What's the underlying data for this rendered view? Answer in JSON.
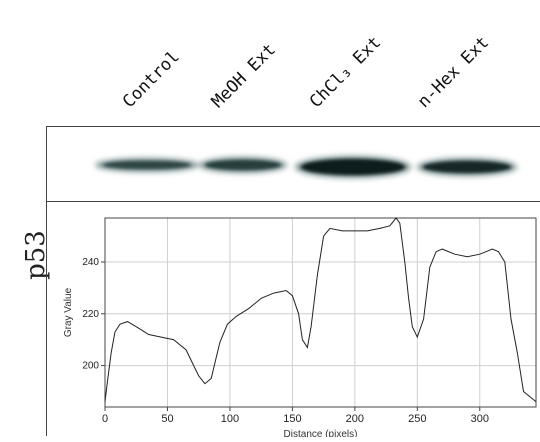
{
  "lanes": [
    "Control",
    "MeOH Ext",
    "ChCl₃ Ext",
    "n-Hex Ext"
  ],
  "protein": "p53",
  "chart_data": {
    "type": "line",
    "xlabel": "Distance (pixels)",
    "ylabel": "Gray Value",
    "xlim": [
      0,
      345
    ],
    "ylim": [
      184,
      257
    ],
    "xticks": [
      0,
      50,
      100,
      150,
      200,
      250,
      300
    ],
    "yticks": [
      200,
      220,
      240
    ],
    "xtick_labels": [
      "0",
      "50",
      "100",
      "150",
      "200",
      "250",
      "300"
    ],
    "ytick_labels": [
      "200",
      "220",
      "240"
    ],
    "grid": true,
    "series": [
      {
        "x": [
          0,
          2,
          5,
          8,
          12,
          18,
          25,
          35,
          45,
          55,
          65,
          70,
          75,
          80,
          85,
          88,
          92,
          98,
          105,
          115,
          125,
          135,
          145,
          150,
          155,
          158,
          162,
          165,
          170,
          175,
          180,
          190,
          200,
          210,
          220,
          228,
          233,
          236,
          240,
          243,
          246,
          250,
          255,
          260,
          265,
          270,
          280,
          290,
          300,
          305,
          310,
          315,
          320,
          325,
          330,
          335,
          340,
          345
        ],
        "y": [
          186,
          194,
          205,
          213,
          216,
          217,
          215,
          212,
          211,
          210,
          206,
          201,
          196,
          193,
          195,
          201,
          209,
          216,
          219,
          222,
          226,
          228,
          229,
          227,
          220,
          210,
          207,
          215,
          235,
          250,
          253,
          252,
          252,
          252,
          253,
          254,
          257,
          255,
          240,
          226,
          215,
          211,
          218,
          238,
          244,
          245,
          243,
          242,
          243,
          244,
          245,
          244,
          240,
          218,
          205,
          190,
          188,
          186
        ]
      }
    ]
  }
}
